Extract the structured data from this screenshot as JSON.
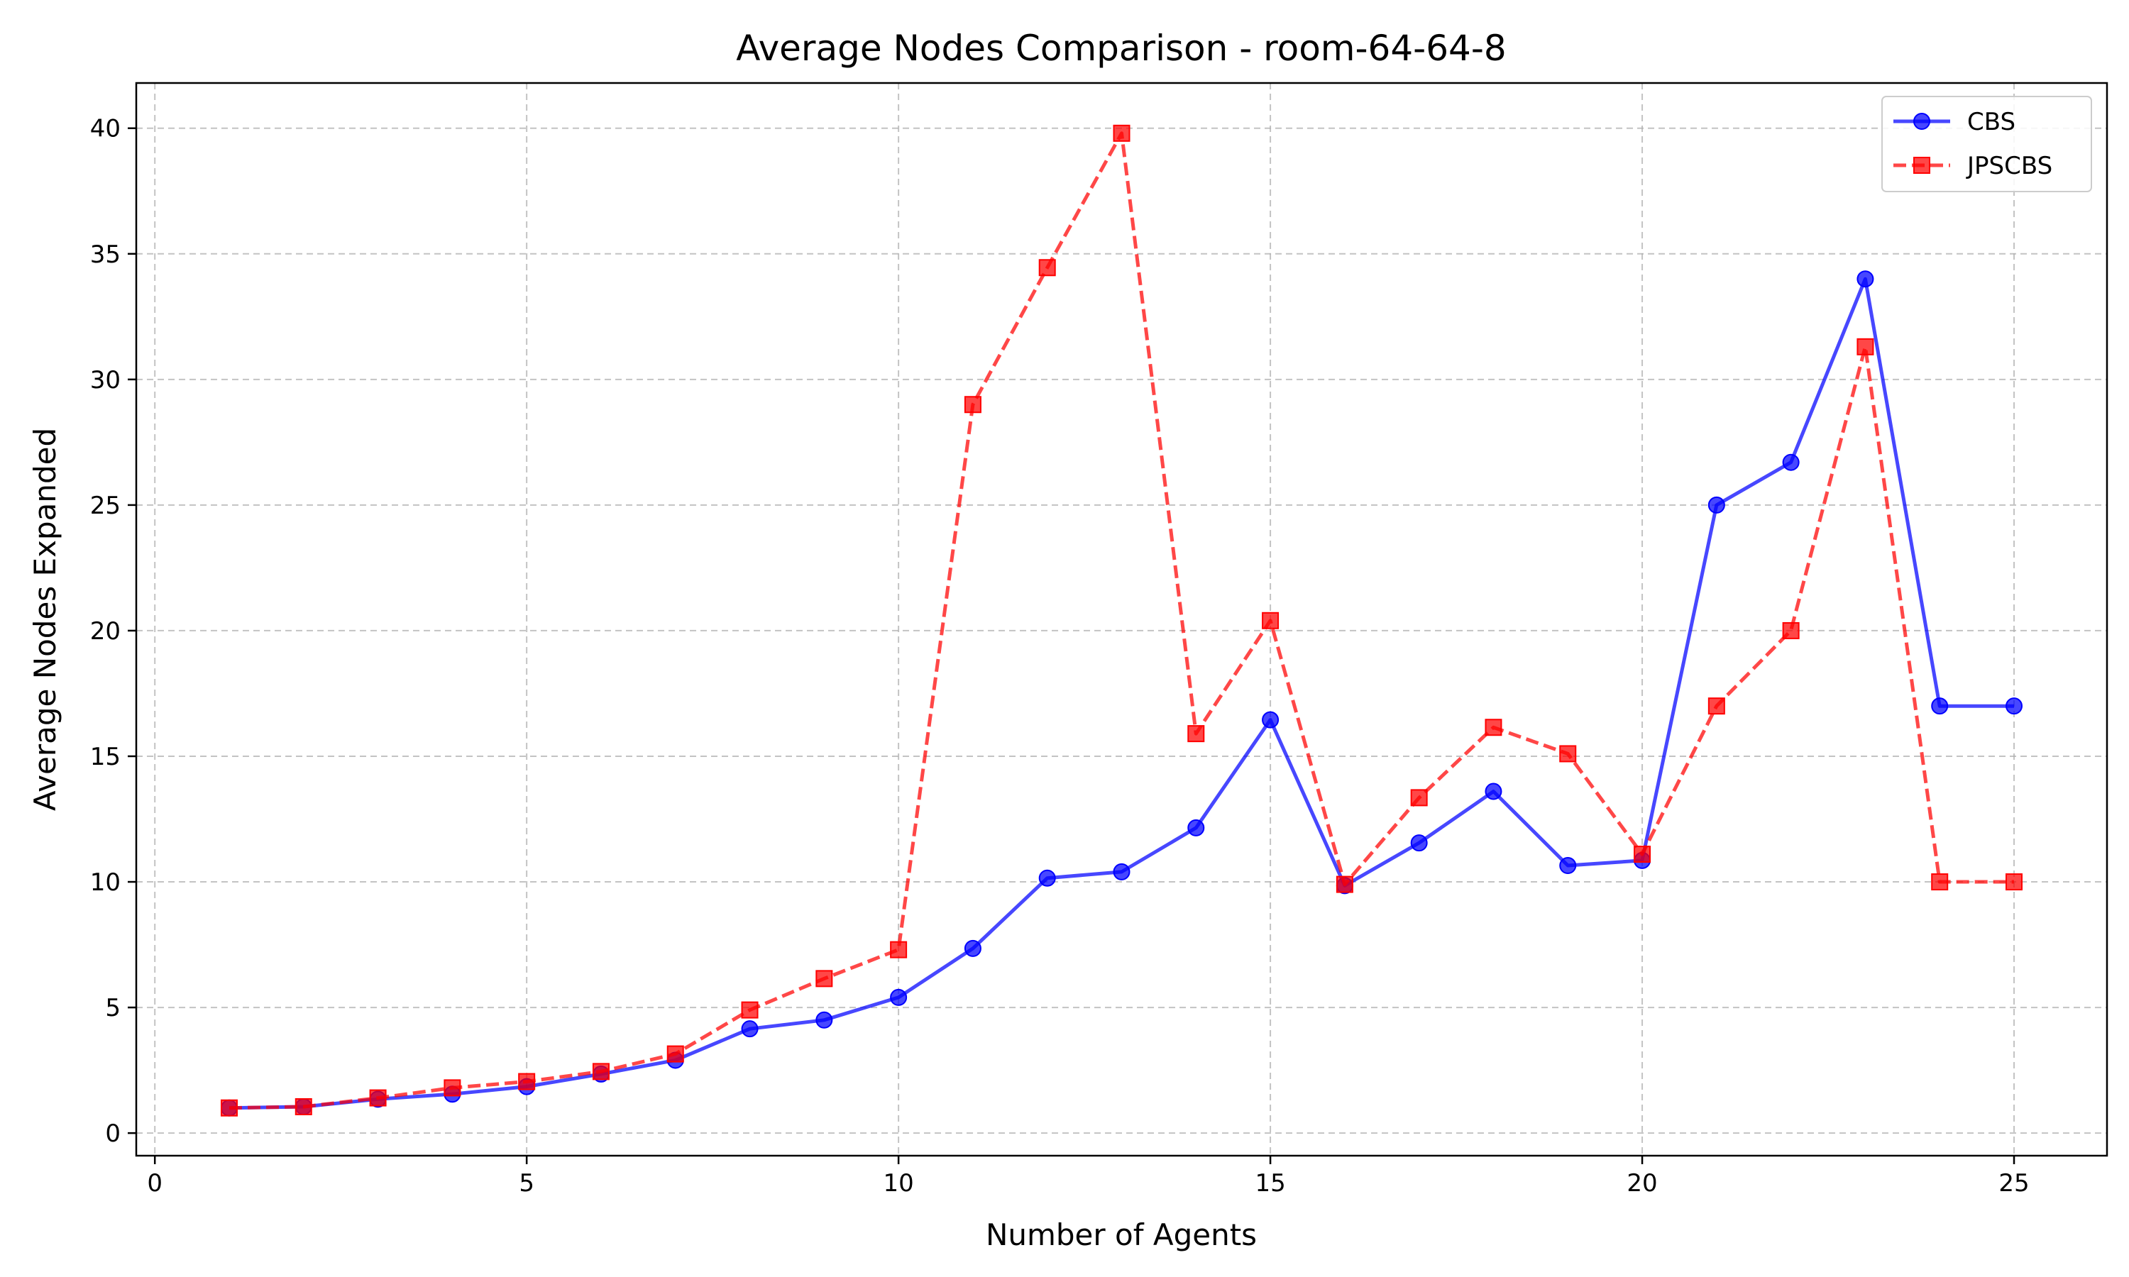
{
  "chart_data": {
    "type": "line",
    "title": "Average Nodes Comparison - room-64-64-8",
    "xlabel": "Number of Agents",
    "ylabel": "Average Nodes Expanded",
    "xlim": [
      -0.25,
      26.25
    ],
    "ylim": [
      -0.9,
      41.8
    ],
    "xticks": [
      0,
      5,
      10,
      15,
      20,
      25
    ],
    "yticks": [
      0,
      5,
      10,
      15,
      20,
      25,
      30,
      35,
      40
    ],
    "grid": true,
    "legend_position": "top-right",
    "x": [
      1,
      2,
      3,
      4,
      5,
      6,
      7,
      8,
      9,
      10,
      11,
      12,
      13,
      14,
      15,
      16,
      17,
      18,
      19,
      20,
      21,
      22,
      23,
      24,
      25
    ],
    "series": [
      {
        "name": "CBS",
        "color": "#0000ff",
        "line_style": "solid",
        "marker": "circle",
        "values": [
          1.0,
          1.05,
          1.35,
          1.55,
          1.85,
          2.35,
          2.9,
          4.15,
          4.5,
          5.4,
          7.35,
          10.15,
          10.4,
          12.15,
          16.45,
          9.85,
          11.55,
          13.6,
          10.65,
          10.85,
          25.0,
          26.7,
          34.0,
          17.0,
          17.0
        ]
      },
      {
        "name": "JPSCBS",
        "color": "#ff0000",
        "line_style": "dashed",
        "marker": "square",
        "values": [
          1.0,
          1.05,
          1.4,
          1.8,
          2.05,
          2.45,
          3.15,
          4.9,
          6.15,
          7.3,
          29.0,
          34.45,
          39.8,
          15.9,
          20.4,
          9.9,
          13.35,
          16.15,
          15.1,
          11.1,
          17.0,
          20.0,
          31.3,
          10.0,
          10.0
        ]
      }
    ]
  }
}
